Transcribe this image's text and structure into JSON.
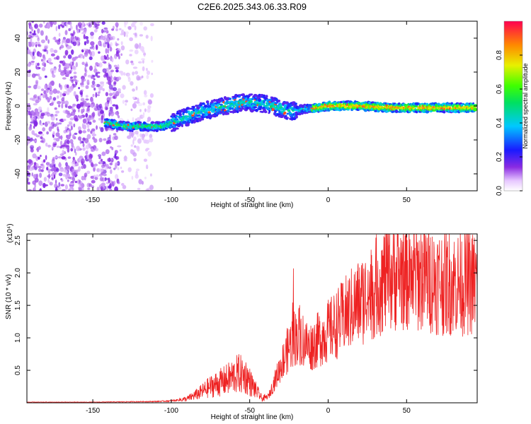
{
  "title": "C2E6.2025.343.06.33.R09",
  "chart_data": [
    {
      "type": "heatmap",
      "xlabel": "Height of straight line (km)",
      "ylabel": "Frequency (Hz)",
      "xlim": [
        -192,
        95
      ],
      "ylim": [
        -50,
        50
      ],
      "xticks": [
        -150,
        -100,
        -50,
        0,
        50
      ],
      "xtick_labels": [
        "-150",
        "-100",
        "-50",
        "0",
        "50"
      ],
      "yticks": [
        -40,
        -20,
        0,
        20,
        40
      ],
      "ytick_labels": [
        "-40",
        "-20",
        "0",
        "20",
        "40"
      ],
      "grid": false,
      "colorbar": {
        "label": "Normalized spectral amplitude",
        "range": [
          0,
          1
        ],
        "ticks": [
          0.0,
          0.2,
          0.4,
          0.6,
          0.8
        ],
        "tick_labels": [
          "0.0",
          "0.2",
          "0.4",
          "0.6",
          "0.8"
        ],
        "colormap": "rainbow-purple-to-red"
      },
      "trace_center": [
        {
          "x": -140,
          "y": -10
        },
        {
          "x": -130,
          "y": -12
        },
        {
          "x": -120,
          "y": -12
        },
        {
          "x": -105,
          "y": -12
        },
        {
          "x": -95,
          "y": -8
        },
        {
          "x": -80,
          "y": -3
        },
        {
          "x": -70,
          "y": -1
        },
        {
          "x": -55,
          "y": 2
        },
        {
          "x": -45,
          "y": 2
        },
        {
          "x": -35,
          "y": 0
        },
        {
          "x": -25,
          "y": -3
        },
        {
          "x": -15,
          "y": -2
        },
        {
          "x": 0,
          "y": 0
        },
        {
          "x": 20,
          "y": 0
        },
        {
          "x": 40,
          "y": -1
        },
        {
          "x": 60,
          "y": -1
        },
        {
          "x": 80,
          "y": -1
        },
        {
          "x": 94,
          "y": -1
        }
      ]
    },
    {
      "type": "line",
      "xlabel": "Height of straight line (km)",
      "ylabel": "SNR (10 * v/v)",
      "y_multiplier_label": "(x10⁴)",
      "xlim": [
        -192,
        95
      ],
      "ylim": [
        0,
        2.6
      ],
      "xticks": [
        -150,
        -100,
        -50,
        0,
        50
      ],
      "xtick_labels": [
        "-150",
        "-100",
        "-50",
        "0",
        "50"
      ],
      "yticks": [
        0.5,
        1.0,
        1.5,
        2.0,
        2.5
      ],
      "ytick_labels": [
        "0.5",
        "1.0",
        "1.5",
        "2.0",
        "2.5"
      ],
      "grid": false,
      "series": [
        {
          "color": "#ee2222",
          "envelope": [
            {
              "x": -192,
              "y": 0.01
            },
            {
              "x": -150,
              "y": 0.01
            },
            {
              "x": -110,
              "y": 0.02
            },
            {
              "x": -100,
              "y": 0.03
            },
            {
              "x": -90,
              "y": 0.06
            },
            {
              "x": -82,
              "y": 0.15
            },
            {
              "x": -75,
              "y": 0.25
            },
            {
              "x": -65,
              "y": 0.35
            },
            {
              "x": -57,
              "y": 0.45
            },
            {
              "x": -52,
              "y": 0.4
            },
            {
              "x": -47,
              "y": 0.22
            },
            {
              "x": -42,
              "y": 0.06
            },
            {
              "x": -38,
              "y": 0.1
            },
            {
              "x": -33,
              "y": 0.4
            },
            {
              "x": -28,
              "y": 0.7
            },
            {
              "x": -22,
              "y": 1.0
            },
            {
              "x": -18,
              "y": 1.05
            },
            {
              "x": -12,
              "y": 0.85
            },
            {
              "x": -5,
              "y": 1.0
            },
            {
              "x": 5,
              "y": 1.2
            },
            {
              "x": 15,
              "y": 1.45
            },
            {
              "x": 25,
              "y": 1.65
            },
            {
              "x": 35,
              "y": 1.9
            },
            {
              "x": 45,
              "y": 2.0
            },
            {
              "x": 60,
              "y": 1.95
            },
            {
              "x": 75,
              "y": 1.85
            },
            {
              "x": 95,
              "y": 1.85
            }
          ]
        }
      ]
    }
  ]
}
